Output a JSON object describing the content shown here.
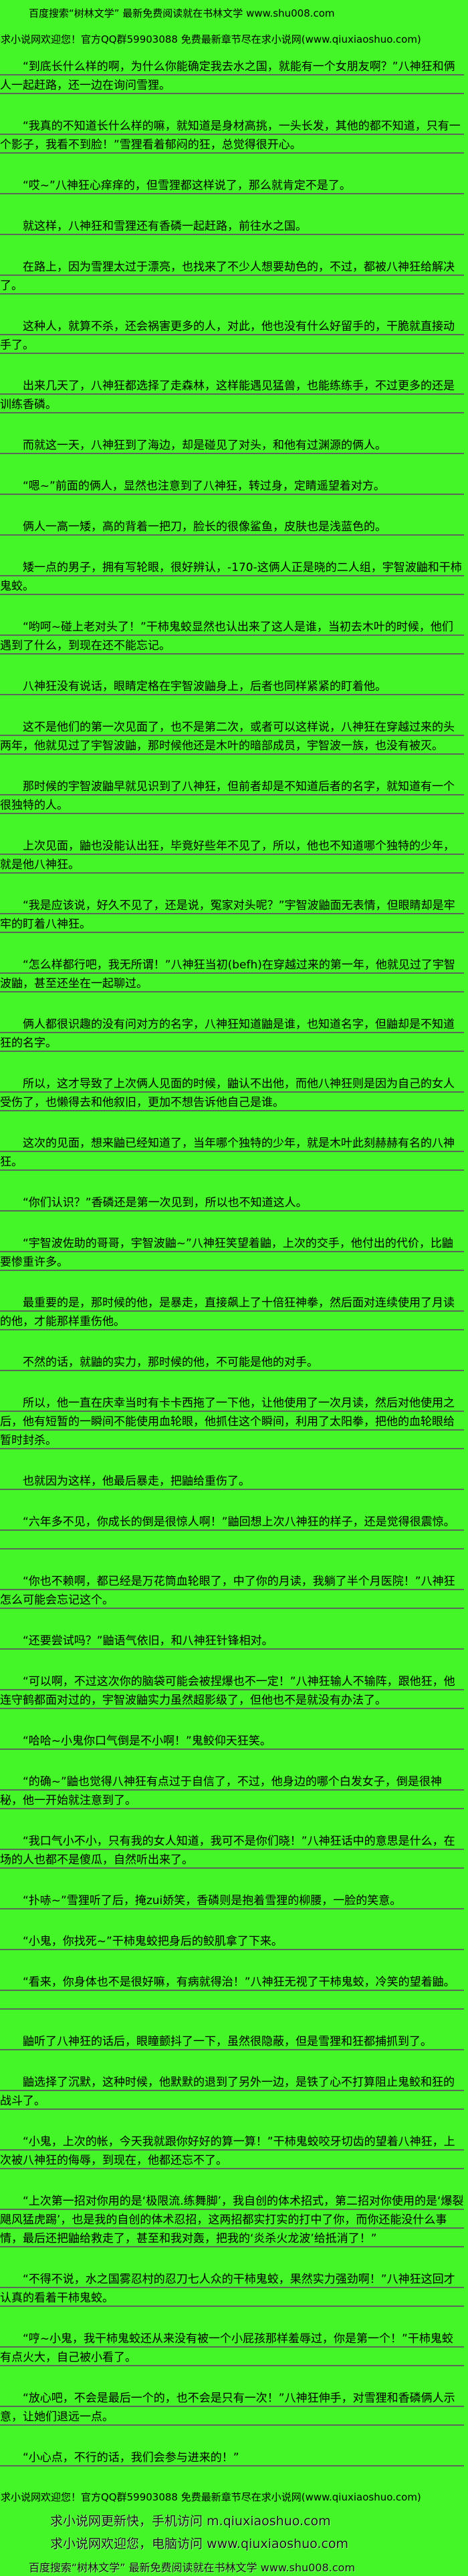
{
  "page": {
    "background_color": "#44f627",
    "text_color": "#000000",
    "rule_color": "#5a675a"
  },
  "header": {
    "line1": "百度搜索“树林文学” 最新免费阅读就在书林文学 www.shu008.com",
    "line2": "求小说网欢迎您！官方QQ群59903088 免费最新章节尽在求小说网(www.qiuxiaoshuo.com)"
  },
  "paragraphs": [
    {
      "text": "“到底长什么样的啊，为什么你能确定我去水之国，就能有一个女朋友啊？”八神狂和俩人一起赶路，还一边在询问雪狸。",
      "extra_line": false
    },
    {
      "text": "“我真的不知道长什么样的嘛，就知道是身材高挑，一头长发，其他的都不知道，只有一个影子，我看不到脸！”雪狸看着郁闷的狂，总觉得很开心。",
      "extra_line": false
    },
    {
      "text": "“哎~”八神狂心痒痒的，但雪狸都这样说了，那么就肯定不是了。",
      "extra_line": false
    },
    {
      "text": "就这样，八神狂和雪狸还有香磷一起赶路，前往水之国。",
      "extra_line": false
    },
    {
      "text": "在路上，因为雪狸太过于漂亮，也找来了不少人想要劫色的，不过，都被八神狂给解决了。",
      "extra_line": true
    },
    {
      "text": "这种人，就算不杀，还会祸害更多的人，对此，他也没有什么好留手的，干脆就直接动手了。",
      "extra_line": true
    },
    {
      "text": "出来几天了，八神狂都选择了走森林，这样能遇见猛兽，也能练练手，不过更多的还是训练香磷。",
      "extra_line": false
    },
    {
      "text": "而就这一天，八神狂到了海边，却是碰见了对头，和他有过渊源的俩人。",
      "extra_line": false
    },
    {
      "text": "“嗯~”前面的俩人，显然也注意到了八神狂，转过身，定睛遥望着对方。",
      "extra_line": false
    },
    {
      "text": "俩人一高一矮，高的背着一把刀，脸长的很像鲨鱼，皮肤也是浅蓝色的。",
      "extra_line": false
    },
    {
      "text": "矮一点的男子，拥有写轮眼，很好辨认，-170-这俩人正是晓的二人组，宇智波鼬和干柿鬼蛟。",
      "extra_line": false
    },
    {
      "text": "“哟呵~碰上老对头了！”干柿鬼蛟显然也认出来了这人是谁，当初去木叶的时候，他们遇到了什么，到现在还不能忘记。",
      "extra_line": false
    },
    {
      "text": "八神狂没有说话，眼睛定格在宇智波鼬身上，后者也同样紧紧的盯着他。",
      "extra_line": false
    },
    {
      "text": "这不是他们的第一次见面了，也不是第二次，或者可以这样说，八神狂在穿越过来的头两年，他就见过了宇智波鼬，那时候他还是木叶的暗部成员，宇智波一族，也没有被灭。",
      "extra_line": false
    },
    {
      "text": "那时候的宇智波鼬早就见识到了八神狂，但前者却是不知道后者的名字，就知道有一个很独特的人。",
      "extra_line": false
    },
    {
      "text": "上次见面，鼬也没能认出狂，毕竟好些年不见了，所以，他也不知道哪个独特的少年，就是他八神狂。",
      "extra_line": false
    },
    {
      "text": "“我是应该说，好久不见了，还是说，冤家对头呢？”宇智波鼬面无表情，但眼睛却是牢牢的盯着八神狂。",
      "extra_line": false
    },
    {
      "text": "“怎么样都行吧，我无所谓！”八神狂当初(befh)在穿越过来的第一年，他就见过了宇智波鼬，甚至还坐在一起聊过。",
      "extra_line": false
    },
    {
      "text": "俩人都很识趣的没有问对方的名字，八神狂知道鼬是谁，也知道名字，但鼬却是不知道狂的名字。",
      "extra_line": false
    },
    {
      "text": "所以，这才导致了上次俩人见面的时候，鼬认不出他，而他八神狂则是因为自己的女人受伤了，也懒得去和他叙旧，更加不想告诉他自己是谁。",
      "extra_line": false
    },
    {
      "text": "这次的见面，想来鼬已经知道了，当年哪个独特的少年，就是木叶此刻赫赫有名的八神狂。",
      "extra_line": true
    },
    {
      "text": "“你们认识？”香磷还是第一次见到，所以也不知道这人。",
      "extra_line": false
    },
    {
      "text": "“宇智波佐助的哥哥，宇智波鼬~”八神狂笑望着鼬，上次的交手，他付出的代价，比鼬要惨重许多。",
      "extra_line": false
    },
    {
      "text": "最重要的是，那时候的他，是暴走，直接飙上了十倍狂神拳，然后面对连续使用了月读的他，才能那样重伤他。",
      "extra_line": false
    },
    {
      "text": "不然的话，就鼬的实力，那时候的他，不可能是他的对手。",
      "extra_line": false
    },
    {
      "text": "所以，他一直在庆幸当时有卡卡西拖了一下他，让他使用了一次月读，然后对他使用之后，他有短暂的一瞬间不能使用血轮眼，他抓住这个瞬间，利用了太阳拳，把他的血轮眼给暂时封杀。",
      "extra_line": false
    },
    {
      "text": "也就因为这样，他最后暴走，把鼬给重伤了。",
      "extra_line": false
    },
    {
      "text": "“六年多不见，你成长的倒是很惊人啊！”鼬回想上次八神狂的样子，还是觉得很震惊。",
      "extra_line": true
    },
    {
      "text": "“你也不赖啊，都已经是万花筒血轮眼了，中了你的月读，我躺了半个月医院！”八神狂怎么可能会忘记这个。",
      "extra_line": false
    },
    {
      "text": "“还要尝试吗？”鼬语气依旧，和八神狂针锋相对。",
      "extra_line": false
    },
    {
      "text": "“可以啊，不过这次你的脑袋可能会被捏爆也不一定！”八神狂输人不输阵，跟他狂，他连守鹤都面对过的，宇智波鼬实力虽然超影级了，但他也不是就没有办法了。",
      "extra_line": false
    },
    {
      "text": "“哈哈~小鬼你口气倒是不小啊！”鬼鲛仰天狂笑。",
      "extra_line": false
    },
    {
      "text": "“的确~”鼬也觉得八神狂有点过于自信了，不过，他身边的哪个白发女子，倒是很神秘，他一开始就注意到了。",
      "extra_line": false
    },
    {
      "text": "“我口气小不小，只有我的女人知道，我可不是你们晓！”八神狂话中的意思是什么，在场的人也都不是傻瓜，自然听出来了。",
      "extra_line": false
    },
    {
      "text": "“扑哧~”雪狸听了后，掩zui娇笑，香磷则是抱着雪狸的柳腰，一脸的笑意。",
      "extra_line": false
    },
    {
      "text": "“小鬼，你找死~”干柿鬼蛟把身后的鲛肌拿了下来。",
      "extra_line": false
    },
    {
      "text": "“看来，你身体也不是很好嘛，有病就得治！”八神狂无视了干柿鬼蛟，冷笑的望着鼬。",
      "extra_line": true
    },
    {
      "text": "鼬听了八神狂的话后，眼瞳颤抖了一下，虽然很隐蔽，但是雪狸和狂都捕抓到了。",
      "extra_line": false
    },
    {
      "text": "鼬选择了沉默，这种时候，他默默的退到了另外一边，是铁了心不打算阻止鬼鲛和狂的战斗了。",
      "extra_line": false
    },
    {
      "text": "“小鬼，上次的帐，今天我就跟你好好的算一算！”干柿鬼蛟咬牙切齿的望着八神狂，上次被八神狂的侮辱，到现在，他都还忘不了。",
      "extra_line": false
    },
    {
      "text": "“上次第一招对你用的是‘极限流.练舞脚’，我自创的体术招式，第二招对你使用的是‘爆裂飓风猛虎踢’，也是我的自创的体术忍招，这两招都实打实的打中了你，而你还能没什么事情，最后还把鼬给救走了，甚至和我对轰，把我的‘炎杀火龙波’给抵消了！”",
      "extra_line": false
    },
    {
      "text": "“不得不说，水之国雾忍村的忍刀七人众的干柿鬼蛟，果然实力强劲啊！”八神狂这回才认真的看着干柿鬼蛟。",
      "extra_line": false
    },
    {
      "text": "“哼~小鬼，我干柿鬼蛟还从来没有被一个小屁孩那样羞辱过，你是第一个！”干柿鬼蛟有点火大，自己被小看了。",
      "extra_line": false
    },
    {
      "text": "“放心吧，不会是最后一个的，也不会是只有一次！”八神狂伸手，对雪狸和香磷俩人示意，让她们退远一点。",
      "extra_line": false
    },
    {
      "text": "“小心点，不行的话，我们会参与进来的！”",
      "extra_line": false
    }
  ],
  "footer": {
    "line1": "求小说网欢迎您！官方QQ群59903088 免费最新章节尽在求小说网(www.qiuxiaoshuo.com)",
    "line2": "求小说网更新快，手机访问 m.qiuxiaoshuo.com",
    "line3": "求小说网欢迎您，电脑访问 www.qiuxiaoshuo.com",
    "line4": "百度搜索“树林文学” 最新免费阅读就在书林文学 www.shu008.com"
  }
}
